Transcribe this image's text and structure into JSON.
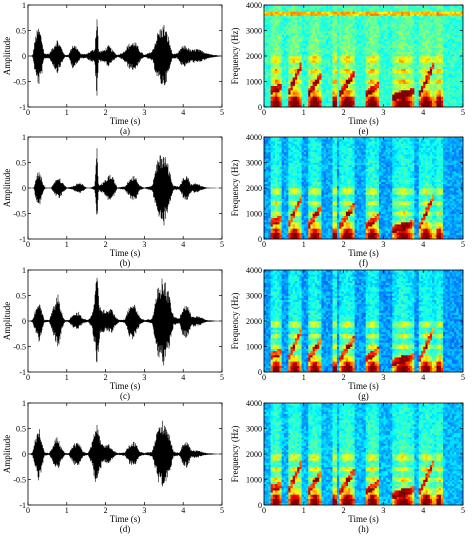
{
  "chart_data": [
    {
      "type": "line",
      "panel": "a",
      "caption": "(a)",
      "xlabel": "Time (s)",
      "ylabel": "Amplitude",
      "xlim": [
        0,
        5
      ],
      "ylim": [
        -1,
        1
      ],
      "xticks": [
        0,
        1,
        2,
        3,
        4,
        5
      ],
      "yticks": [
        -1,
        -0.5,
        0,
        0.5,
        1
      ],
      "series": [
        {
          "color": "#000000",
          "envelope": [
            [
              0.05,
              0.0
            ],
            [
              0.12,
              0.02
            ],
            [
              0.2,
              0.45
            ],
            [
              0.28,
              0.6
            ],
            [
              0.35,
              0.4
            ],
            [
              0.42,
              0.05
            ],
            [
              0.55,
              0.05
            ],
            [
              0.65,
              0.2
            ],
            [
              0.75,
              0.35
            ],
            [
              0.85,
              0.2
            ],
            [
              0.95,
              0.02
            ],
            [
              1.05,
              0.03
            ],
            [
              1.15,
              0.25
            ],
            [
              1.25,
              0.2
            ],
            [
              1.35,
              0.05
            ],
            [
              1.5,
              0.04
            ],
            [
              1.6,
              0.1
            ],
            [
              1.72,
              0.15
            ],
            [
              1.78,
              0.95
            ],
            [
              1.82,
              0.1
            ],
            [
              1.95,
              0.12
            ],
            [
              2.08,
              0.22
            ],
            [
              2.2,
              0.1
            ],
            [
              2.3,
              0.02
            ],
            [
              2.45,
              0.08
            ],
            [
              2.6,
              0.25
            ],
            [
              2.75,
              0.3
            ],
            [
              2.9,
              0.1
            ],
            [
              3.0,
              0.02
            ],
            [
              3.2,
              0.1
            ],
            [
              3.35,
              0.5
            ],
            [
              3.5,
              0.65
            ],
            [
              3.62,
              0.4
            ],
            [
              3.72,
              0.05
            ],
            [
              3.85,
              0.05
            ],
            [
              3.95,
              0.18
            ],
            [
              4.05,
              0.22
            ],
            [
              4.2,
              0.12
            ],
            [
              4.35,
              0.15
            ],
            [
              4.5,
              0.1
            ],
            [
              4.7,
              0.04
            ],
            [
              4.85,
              0.02
            ],
            [
              5.0,
              0.0
            ]
          ]
        }
      ]
    },
    {
      "type": "heatmap",
      "panel": "e",
      "caption": "(e)",
      "xlabel": "Time (s)",
      "ylabel": "Frequency (Hz)",
      "xlim": [
        0,
        5
      ],
      "ylim": [
        0,
        4000
      ],
      "xticks": [
        0,
        1,
        2,
        3,
        4,
        5
      ],
      "yticks": [
        0,
        1000,
        2000,
        3000,
        4000
      ],
      "colormap": "jet",
      "background_level": 0.42,
      "noise_band_hz": 3700
    },
    {
      "type": "line",
      "panel": "b",
      "caption": "(b)",
      "xlabel": "Time (s)",
      "ylabel": "Amplitude",
      "xlim": [
        0,
        5
      ],
      "ylim": [
        -1,
        1
      ],
      "xticks": [
        0,
        1,
        2,
        3,
        4,
        5
      ],
      "yticks": [
        -1,
        -0.5,
        0,
        0.5,
        1
      ],
      "series": [
        {
          "color": "#000000",
          "envelope": [
            [
              0.05,
              0.0
            ],
            [
              0.15,
              0.01
            ],
            [
              0.22,
              0.3
            ],
            [
              0.3,
              0.35
            ],
            [
              0.38,
              0.1
            ],
            [
              0.45,
              0.01
            ],
            [
              0.6,
              0.01
            ],
            [
              0.7,
              0.15
            ],
            [
              0.8,
              0.22
            ],
            [
              0.9,
              0.1
            ],
            [
              1.0,
              0.01
            ],
            [
              1.15,
              0.03
            ],
            [
              1.3,
              0.12
            ],
            [
              1.4,
              0.08
            ],
            [
              1.5,
              0.01
            ],
            [
              1.62,
              0.01
            ],
            [
              1.72,
              0.05
            ],
            [
              1.78,
              0.8
            ],
            [
              1.82,
              0.05
            ],
            [
              1.95,
              0.12
            ],
            [
              2.1,
              0.28
            ],
            [
              2.2,
              0.2
            ],
            [
              2.3,
              0.01
            ],
            [
              2.5,
              0.04
            ],
            [
              2.65,
              0.22
            ],
            [
              2.75,
              0.28
            ],
            [
              2.88,
              0.05
            ],
            [
              3.0,
              0.01
            ],
            [
              3.2,
              0.05
            ],
            [
              3.35,
              0.6
            ],
            [
              3.5,
              0.75
            ],
            [
              3.62,
              0.45
            ],
            [
              3.75,
              0.05
            ],
            [
              3.9,
              0.03
            ],
            [
              4.0,
              0.2
            ],
            [
              4.1,
              0.25
            ],
            [
              4.2,
              0.08
            ],
            [
              4.35,
              0.1
            ],
            [
              4.45,
              0.05
            ],
            [
              4.6,
              0.01
            ],
            [
              5.0,
              0.0
            ]
          ]
        }
      ]
    },
    {
      "type": "heatmap",
      "panel": "f",
      "caption": "(f)",
      "xlabel": "Time (s)",
      "ylabel": "Frequency (Hz)",
      "xlim": [
        0,
        5
      ],
      "ylim": [
        0,
        4000
      ],
      "xticks": [
        0,
        1,
        2,
        3,
        4,
        5
      ],
      "yticks": [
        0,
        1000,
        2000,
        3000,
        4000
      ],
      "colormap": "jet",
      "background_level": 0.34,
      "noise_band_hz": 0
    },
    {
      "type": "line",
      "panel": "c",
      "caption": "(c)",
      "xlabel": "Time (s)",
      "ylabel": "Amplitude",
      "xlim": [
        0,
        5
      ],
      "ylim": [
        -1,
        1
      ],
      "xticks": [
        0,
        1,
        2,
        3,
        4,
        5
      ],
      "yticks": [
        -1,
        -0.5,
        0,
        0.5,
        1
      ],
      "series": [
        {
          "color": "#000000",
          "envelope": [
            [
              0.05,
              0.0
            ],
            [
              0.12,
              0.03
            ],
            [
              0.2,
              0.25
            ],
            [
              0.28,
              0.45
            ],
            [
              0.36,
              0.2
            ],
            [
              0.42,
              0.03
            ],
            [
              0.55,
              0.02
            ],
            [
              0.68,
              0.35
            ],
            [
              0.78,
              0.55
            ],
            [
              0.88,
              0.15
            ],
            [
              0.95,
              0.02
            ],
            [
              1.05,
              0.02
            ],
            [
              1.15,
              0.12
            ],
            [
              1.3,
              0.18
            ],
            [
              1.42,
              0.05
            ],
            [
              1.55,
              0.02
            ],
            [
              1.65,
              0.15
            ],
            [
              1.72,
              0.5
            ],
            [
              1.78,
              0.95
            ],
            [
              1.85,
              0.3
            ],
            [
              2.0,
              0.2
            ],
            [
              2.15,
              0.25
            ],
            [
              2.25,
              0.1
            ],
            [
              2.35,
              0.02
            ],
            [
              2.5,
              0.04
            ],
            [
              2.65,
              0.4
            ],
            [
              2.75,
              0.35
            ],
            [
              2.88,
              0.08
            ],
            [
              3.0,
              0.02
            ],
            [
              3.2,
              0.05
            ],
            [
              3.35,
              0.7
            ],
            [
              3.5,
              0.9
            ],
            [
              3.62,
              0.6
            ],
            [
              3.75,
              0.1
            ],
            [
              3.9,
              0.05
            ],
            [
              4.0,
              0.3
            ],
            [
              4.1,
              0.35
            ],
            [
              4.2,
              0.12
            ],
            [
              4.35,
              0.1
            ],
            [
              4.45,
              0.08
            ],
            [
              4.6,
              0.02
            ],
            [
              5.0,
              0.0
            ]
          ]
        }
      ]
    },
    {
      "type": "heatmap",
      "panel": "g",
      "caption": "(g)",
      "xlabel": "Time (s)",
      "ylabel": "Frequency (Hz)",
      "xlim": [
        0,
        5
      ],
      "ylim": [
        0,
        4000
      ],
      "xticks": [
        0,
        1,
        2,
        3,
        4,
        5
      ],
      "yticks": [
        0,
        1000,
        2000,
        3000,
        4000
      ],
      "colormap": "jet",
      "background_level": 0.33,
      "noise_band_hz": 0
    },
    {
      "type": "line",
      "panel": "d",
      "caption": "(d)",
      "xlabel": "Time (s)",
      "ylabel": "Amplitude",
      "xlim": [
        0,
        5
      ],
      "ylim": [
        -1,
        1
      ],
      "xticks": [
        0,
        1,
        2,
        3,
        4,
        5
      ],
      "yticks": [
        -1,
        -0.5,
        0,
        0.5,
        1
      ],
      "series": [
        {
          "color": "#000000",
          "envelope": [
            [
              0.05,
              0.0
            ],
            [
              0.12,
              0.04
            ],
            [
              0.2,
              0.35
            ],
            [
              0.28,
              0.55
            ],
            [
              0.36,
              0.3
            ],
            [
              0.42,
              0.04
            ],
            [
              0.55,
              0.02
            ],
            [
              0.65,
              0.2
            ],
            [
              0.75,
              0.35
            ],
            [
              0.85,
              0.15
            ],
            [
              0.95,
              0.02
            ],
            [
              1.05,
              0.02
            ],
            [
              1.2,
              0.22
            ],
            [
              1.3,
              0.25
            ],
            [
              1.42,
              0.05
            ],
            [
              1.55,
              0.02
            ],
            [
              1.68,
              0.3
            ],
            [
              1.75,
              0.75
            ],
            [
              1.82,
              0.4
            ],
            [
              1.95,
              0.15
            ],
            [
              2.08,
              0.2
            ],
            [
              2.2,
              0.08
            ],
            [
              2.3,
              0.02
            ],
            [
              2.5,
              0.04
            ],
            [
              2.62,
              0.2
            ],
            [
              2.75,
              0.25
            ],
            [
              2.88,
              0.05
            ],
            [
              3.0,
              0.02
            ],
            [
              3.2,
              0.05
            ],
            [
              3.35,
              0.55
            ],
            [
              3.5,
              0.7
            ],
            [
              3.62,
              0.5
            ],
            [
              3.75,
              0.05
            ],
            [
              3.9,
              0.03
            ],
            [
              4.0,
              0.22
            ],
            [
              4.1,
              0.28
            ],
            [
              4.2,
              0.08
            ],
            [
              4.35,
              0.08
            ],
            [
              4.45,
              0.05
            ],
            [
              4.6,
              0.02
            ],
            [
              5.0,
              0.0
            ]
          ]
        }
      ]
    },
    {
      "type": "heatmap",
      "panel": "h",
      "caption": "(h)",
      "xlabel": "Time (s)",
      "ylabel": "Frequency (Hz)",
      "xlim": [
        0,
        5
      ],
      "ylim": [
        0,
        4000
      ],
      "xticks": [
        0,
        1,
        2,
        3,
        4,
        5
      ],
      "yticks": [
        0,
        1000,
        2000,
        3000,
        4000
      ],
      "colormap": "jet",
      "background_level": 0.36,
      "noise_band_hz": 0
    }
  ],
  "speech_regions": [
    [
      0.15,
      0.45
    ],
    [
      0.6,
      0.95
    ],
    [
      1.1,
      1.45
    ],
    [
      1.7,
      1.85
    ],
    [
      1.9,
      2.3
    ],
    [
      2.55,
      2.9
    ],
    [
      3.25,
      3.75
    ],
    [
      3.9,
      4.25
    ],
    [
      4.3,
      4.5
    ]
  ],
  "formant_tracks": [
    [
      [
        0.15,
        650
      ],
      [
        0.45,
        800
      ]
    ],
    [
      [
        0.6,
        500
      ],
      [
        0.95,
        1700
      ]
    ],
    [
      [
        1.1,
        500
      ],
      [
        1.45,
        1300
      ]
    ],
    [
      [
        1.9,
        500
      ],
      [
        2.3,
        1400
      ]
    ],
    [
      [
        2.55,
        500
      ],
      [
        2.9,
        900
      ]
    ],
    [
      [
        3.25,
        400
      ],
      [
        3.75,
        600
      ]
    ],
    [
      [
        3.9,
        500
      ],
      [
        4.25,
        1600
      ]
    ]
  ]
}
